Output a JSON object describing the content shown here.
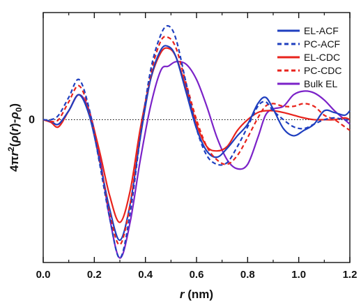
{
  "chart_data": {
    "type": "line",
    "title": "",
    "xlabel_var": "r",
    "xlabel_unit": "(nm)",
    "ylabel_parts": [
      "4π",
      "r",
      "2",
      "(",
      "ρ",
      "(",
      "r",
      ")-",
      "ρ",
      "0",
      ")"
    ],
    "xlim": [
      0.0,
      1.2
    ],
    "ylim": [
      -1.6,
      1.2
    ],
    "x_ticks": [
      "0.0",
      "0.2",
      "0.4",
      "0.6",
      "0.8",
      "1.0",
      "1.2"
    ],
    "y_tick_label": "0",
    "zero_line": "dotted",
    "grid": false,
    "legend_position": "top-right",
    "series": [
      {
        "name": "EL-ACF",
        "color": "#1f3fbf",
        "dash": "solid",
        "x": [
          0,
          0.03,
          0.06,
          0.1,
          0.14,
          0.18,
          0.22,
          0.26,
          0.3,
          0.34,
          0.38,
          0.42,
          0.46,
          0.49,
          0.52,
          0.56,
          0.6,
          0.64,
          0.68,
          0.72,
          0.76,
          0.8,
          0.84,
          0.87,
          0.9,
          0.94,
          0.98,
          1.02,
          1.06,
          1.1,
          1.14,
          1.18,
          1.2
        ],
        "y": [
          0,
          -0.02,
          -0.05,
          0.1,
          0.28,
          0.05,
          -0.45,
          -1.0,
          -1.35,
          -0.95,
          -0.2,
          0.45,
          0.78,
          0.82,
          0.7,
          0.3,
          -0.1,
          -0.35,
          -0.42,
          -0.32,
          -0.18,
          -0.05,
          0.18,
          0.25,
          0.12,
          -0.1,
          -0.18,
          -0.12,
          -0.05,
          0.1,
          0.08,
          0.05,
          0.1
        ]
      },
      {
        "name": "PC-ACF",
        "color": "#1f3fbf",
        "dash": "dashed",
        "x": [
          0,
          0.03,
          0.06,
          0.1,
          0.14,
          0.18,
          0.22,
          0.26,
          0.3,
          0.34,
          0.38,
          0.42,
          0.46,
          0.49,
          0.52,
          0.56,
          0.6,
          0.64,
          0.68,
          0.72,
          0.76,
          0.8,
          0.84,
          0.87,
          0.9,
          0.94,
          0.98,
          1.02,
          1.06,
          1.1,
          1.14,
          1.18,
          1.2
        ],
        "y": [
          0,
          0.0,
          0.05,
          0.25,
          0.45,
          0.12,
          -0.48,
          -1.1,
          -1.55,
          -1.05,
          -0.2,
          0.55,
          0.95,
          1.05,
          0.9,
          0.4,
          -0.1,
          -0.4,
          -0.5,
          -0.48,
          -0.3,
          -0.08,
          0.15,
          0.2,
          0.1,
          0.0,
          -0.08,
          -0.1,
          -0.05,
          0.0,
          0.02,
          0.0,
          0.0
        ]
      },
      {
        "name": "EL-CDC",
        "color": "#e8231c",
        "dash": "solid",
        "x": [
          0,
          0.03,
          0.06,
          0.1,
          0.14,
          0.18,
          0.22,
          0.26,
          0.3,
          0.34,
          0.38,
          0.42,
          0.46,
          0.49,
          0.52,
          0.56,
          0.6,
          0.64,
          0.68,
          0.72,
          0.76,
          0.8,
          0.84,
          0.87,
          0.9,
          0.94,
          0.98,
          1.02,
          1.06,
          1.1,
          1.14,
          1.18,
          1.2
        ],
        "y": [
          0,
          -0.03,
          -0.08,
          0.1,
          0.28,
          0.08,
          -0.35,
          -0.85,
          -1.15,
          -0.8,
          -0.1,
          0.45,
          0.75,
          0.8,
          0.7,
          0.35,
          -0.05,
          -0.3,
          -0.35,
          -0.3,
          -0.12,
          0.0,
          0.08,
          0.1,
          0.1,
          0.08,
          0.05,
          0.02,
          0.0,
          0.0,
          0.0,
          0.02,
          0.0
        ]
      },
      {
        "name": "PC-CDC",
        "color": "#e8231c",
        "dash": "dashed",
        "x": [
          0,
          0.03,
          0.06,
          0.1,
          0.14,
          0.18,
          0.22,
          0.26,
          0.3,
          0.34,
          0.38,
          0.42,
          0.46,
          0.49,
          0.52,
          0.56,
          0.6,
          0.64,
          0.68,
          0.72,
          0.76,
          0.8,
          0.84,
          0.87,
          0.9,
          0.94,
          0.98,
          1.02,
          1.06,
          1.1,
          1.14,
          1.18,
          1.2
        ],
        "y": [
          0,
          -0.02,
          0.0,
          0.2,
          0.38,
          0.1,
          -0.45,
          -1.05,
          -1.4,
          -0.95,
          -0.15,
          0.5,
          0.88,
          0.92,
          0.8,
          0.4,
          0.0,
          -0.3,
          -0.45,
          -0.5,
          -0.4,
          -0.2,
          0.02,
          0.15,
          0.18,
          0.15,
          0.15,
          0.18,
          0.15,
          0.05,
          0.0,
          -0.08,
          -0.12
        ]
      },
      {
        "name": "Bulk EL",
        "color": "#7b22c8",
        "dash": "solid",
        "x": [
          0,
          0.03,
          0.06,
          0.1,
          0.14,
          0.18,
          0.22,
          0.26,
          0.3,
          0.34,
          0.38,
          0.42,
          0.46,
          0.49,
          0.52,
          0.56,
          0.6,
          0.64,
          0.68,
          0.72,
          0.76,
          0.8,
          0.84,
          0.87,
          0.9,
          0.94,
          0.98,
          1.02,
          1.06,
          1.1,
          1.14,
          1.18,
          1.2
        ],
        "y": [
          0,
          -0.02,
          -0.05,
          0.1,
          0.28,
          0.1,
          -0.4,
          -1.1,
          -1.55,
          -1.15,
          -0.45,
          0.15,
          0.55,
          0.6,
          0.65,
          0.62,
          0.45,
          0.15,
          -0.2,
          -0.45,
          -0.55,
          -0.5,
          -0.2,
          0.05,
          0.12,
          0.15,
          0.28,
          0.32,
          0.3,
          0.22,
          0.1,
          0.0,
          -0.05
        ]
      }
    ]
  }
}
